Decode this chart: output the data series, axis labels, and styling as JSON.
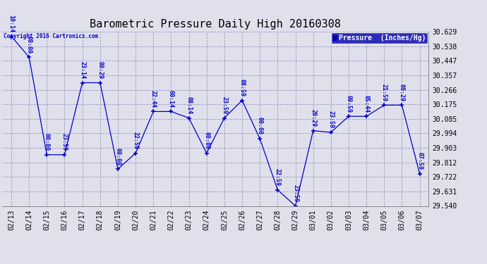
{
  "title": "Barometric Pressure Daily High 20160308",
  "copyright": "Copyright 2016 Cartronics.com",
  "legend_label": "Pressure  (Inches/Hg)",
  "x_labels": [
    "02/13",
    "02/14",
    "02/15",
    "02/16",
    "02/17",
    "02/18",
    "02/19",
    "02/20",
    "02/21",
    "02/22",
    "02/23",
    "02/24",
    "02/25",
    "02/26",
    "02/27",
    "02/28",
    "02/29",
    "03/01",
    "03/02",
    "03/03",
    "03/04",
    "03/05",
    "03/06",
    "03/07"
  ],
  "y_values": [
    30.6,
    30.47,
    29.86,
    29.86,
    30.31,
    30.31,
    29.77,
    29.87,
    30.13,
    30.13,
    30.09,
    29.87,
    30.09,
    30.2,
    29.96,
    29.64,
    29.54,
    30.01,
    30.0,
    30.1,
    30.1,
    30.17,
    30.17,
    29.74
  ],
  "time_labels": [
    "10:14",
    "00:00",
    "00:00",
    "23:59",
    "23:14",
    "00:29",
    "00:00",
    "22:59",
    "22:44",
    "00:14",
    "08:14",
    "00:00",
    "23:59",
    "08:59",
    "00:00",
    "22:59",
    "23:59",
    "20:29",
    "23:59",
    "09:59",
    "05:44",
    "21:59",
    "00:29",
    "07:59"
  ],
  "ylim_min": 29.54,
  "ylim_max": 30.629,
  "y_ticks": [
    29.54,
    29.631,
    29.722,
    29.812,
    29.903,
    29.994,
    30.085,
    30.175,
    30.266,
    30.357,
    30.447,
    30.538,
    30.629
  ],
  "line_color": "#0000CC",
  "marker_color": "#0000CC",
  "bg_color": "#E0E0EC",
  "grid_color": "#9999BB",
  "legend_bg": "#0000AA",
  "legend_text": "#FFFFFF",
  "title_fontsize": 11,
  "tick_fontsize": 7,
  "time_label_fontsize": 6
}
